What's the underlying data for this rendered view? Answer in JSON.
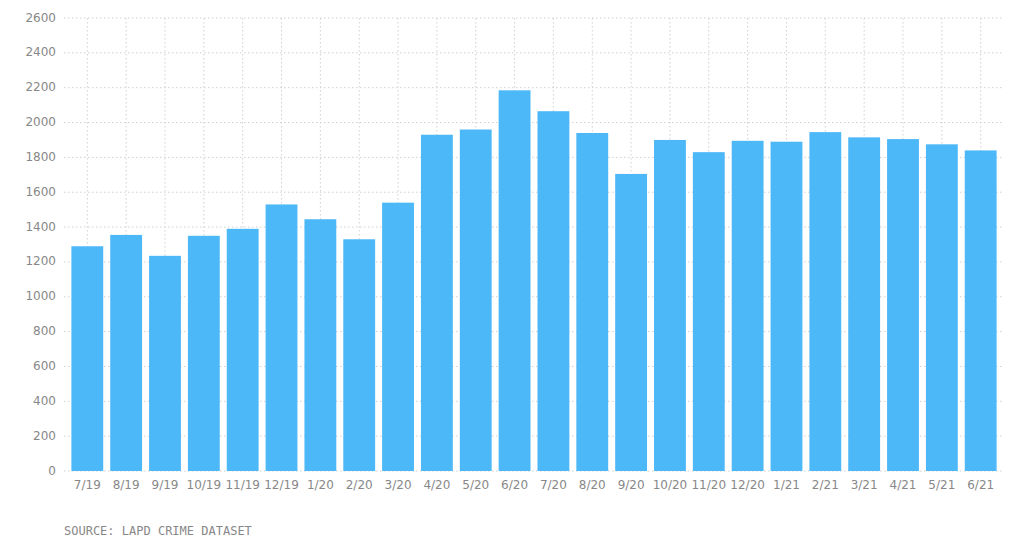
{
  "chart_data": {
    "type": "bar",
    "categories": [
      "7/19",
      "8/19",
      "9/19",
      "10/19",
      "11/19",
      "12/19",
      "1/20",
      "2/20",
      "3/20",
      "4/20",
      "5/20",
      "6/20",
      "7/20",
      "8/20",
      "9/20",
      "10/20",
      "11/20",
      "12/20",
      "1/21",
      "2/21",
      "3/21",
      "4/21",
      "5/21",
      "6/21"
    ],
    "values": [
      1290,
      1355,
      1235,
      1350,
      1390,
      1530,
      1445,
      1330,
      1540,
      1930,
      1960,
      2185,
      2065,
      1940,
      1705,
      1900,
      1830,
      1895,
      1890,
      1945,
      1915,
      1905,
      1875,
      1840
    ],
    "color": "#4db8f8",
    "ylim": [
      0,
      2600
    ],
    "yticks": [
      0,
      200,
      400,
      600,
      800,
      1000,
      1200,
      1400,
      1600,
      1800,
      2000,
      2200,
      2400,
      2600
    ],
    "grid": true,
    "annotations": [
      "SOURCE: LAPD CRIME DATASET"
    ]
  }
}
